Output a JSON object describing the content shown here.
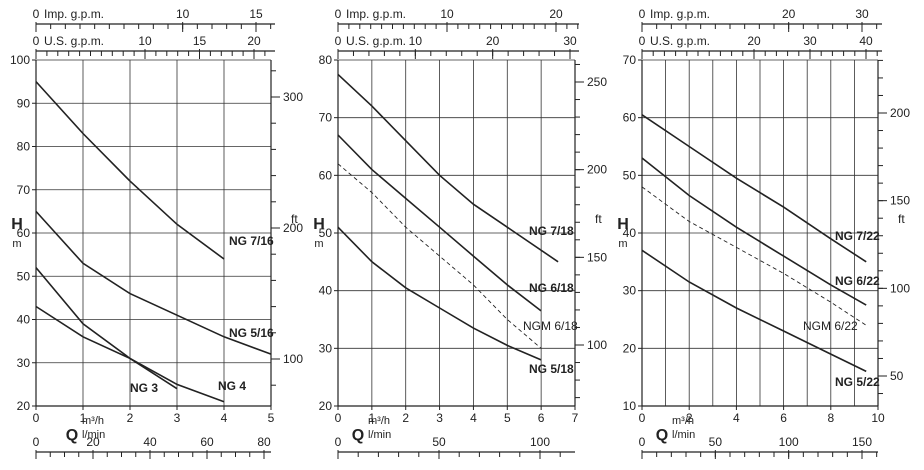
{
  "chart_data": [
    {
      "type": "line",
      "top_axes": [
        {
          "label": "Imp. g.p.m.",
          "ticks": [
            0,
            10,
            15
          ],
          "label_after": 0
        },
        {
          "label": "U.S. g.p.m.",
          "ticks": [
            0,
            10,
            15,
            20
          ],
          "label_after": 0
        }
      ],
      "ylabel": "H",
      "ylabel_unit": "m",
      "ylim": [
        20,
        100
      ],
      "y_ticks": [
        20,
        30,
        40,
        50,
        60,
        70,
        80,
        90,
        100
      ],
      "y_grid": [
        20,
        30,
        40,
        50,
        60,
        70,
        80,
        90,
        100
      ],
      "right_label": "ft",
      "right_ticks": [
        100,
        200,
        300
      ],
      "xlim": [
        0,
        5
      ],
      "x_ticks": [
        0,
        1,
        2,
        3,
        4,
        5
      ],
      "x_grid": [
        0,
        1,
        2,
        3,
        4,
        5
      ],
      "xlabel": "Q",
      "x_unit_top": "m³/h",
      "x_unit_bottom": "l/min",
      "lmin_ticks": [
        0,
        20,
        40,
        60,
        80
      ],
      "series": [
        {
          "name": "NG 7/16",
          "dashed": false,
          "bold": true,
          "x": [
            0,
            1,
            2,
            3,
            4
          ],
          "y": [
            95,
            83,
            72,
            62,
            54
          ]
        },
        {
          "name": "NG 5/16",
          "dashed": false,
          "bold": true,
          "x": [
            0,
            1,
            2,
            3,
            4,
            5
          ],
          "y": [
            65,
            53,
            46,
            41,
            36,
            32
          ]
        },
        {
          "name": "NG 4",
          "dashed": false,
          "bold": true,
          "x": [
            0,
            1,
            2,
            3,
            4
          ],
          "y": [
            52,
            39,
            31,
            25,
            21
          ]
        },
        {
          "name": "NG 3",
          "dashed": false,
          "bold": true,
          "x": [
            0,
            1,
            2,
            3
          ],
          "y": [
            43,
            36,
            31,
            24
          ]
        }
      ]
    },
    {
      "type": "line",
      "top_axes": [
        {
          "label": "Imp. g.p.m.",
          "ticks": [
            0,
            10,
            20
          ],
          "label_after": 0
        },
        {
          "label": "U.S. g.p.m.",
          "ticks": [
            0,
            10,
            20,
            30
          ],
          "label_after": 0
        }
      ],
      "ylabel": "H",
      "ylabel_unit": "m",
      "ylim": [
        20,
        80
      ],
      "y_ticks": [
        20,
        30,
        40,
        50,
        60,
        70,
        80
      ],
      "y_grid": [
        30,
        40,
        50,
        60,
        70,
        80
      ],
      "right_label": "ft",
      "right_ticks": [
        100,
        150,
        200,
        250
      ],
      "xlim": [
        0,
        7
      ],
      "x_ticks": [
        0,
        1,
        2,
        3,
        4,
        5,
        6,
        7
      ],
      "x_grid": [
        0,
        1,
        2,
        3,
        4,
        5,
        6,
        7
      ],
      "xlabel": "Q",
      "x_unit_top": "m³/h",
      "x_unit_bottom": "l/min",
      "lmin_ticks": [
        0,
        50,
        100
      ],
      "series": [
        {
          "name": "NG 7/18",
          "dashed": false,
          "bold": true,
          "x": [
            0,
            1,
            2,
            3,
            4,
            5,
            6.5
          ],
          "y": [
            77.5,
            72,
            66,
            60,
            55,
            51,
            45
          ]
        },
        {
          "name": "NG 6/18",
          "dashed": false,
          "bold": true,
          "x": [
            0,
            1,
            2,
            3,
            4,
            5,
            6
          ],
          "y": [
            67,
            61,
            56,
            51,
            46,
            41,
            36.5
          ]
        },
        {
          "name": "NGM 6/18",
          "dashed": true,
          "bold": false,
          "x": [
            0,
            1,
            2,
            3,
            4,
            5,
            6
          ],
          "y": [
            62,
            57,
            51,
            46,
            41,
            35,
            30
          ]
        },
        {
          "name": "NG 5/18",
          "dashed": false,
          "bold": true,
          "x": [
            0,
            1,
            2,
            3,
            4,
            5,
            6
          ],
          "y": [
            51,
            45,
            40.5,
            37,
            33.5,
            30.5,
            28
          ]
        }
      ]
    },
    {
      "type": "line",
      "top_axes": [
        {
          "label": "Imp. g.p.m.",
          "ticks": [
            0,
            20,
            30
          ],
          "label_after": 0
        },
        {
          "label": "U.S. g.p.m.",
          "ticks": [
            0,
            20,
            30,
            40
          ],
          "label_after": 0
        }
      ],
      "ylabel": "H",
      "ylabel_unit": "m",
      "ylim": [
        10,
        70
      ],
      "y_ticks": [
        10,
        20,
        30,
        40,
        50,
        60,
        70
      ],
      "y_grid": [
        20,
        30,
        40,
        50,
        60,
        70
      ],
      "right_label": "ft",
      "right_ticks": [
        50,
        100,
        150,
        200
      ],
      "xlim": [
        0,
        10
      ],
      "x_ticks": [
        0,
        2,
        4,
        6,
        8,
        10
      ],
      "x_grid": [
        0,
        1,
        2,
        3,
        4,
        5,
        6,
        7,
        8,
        9,
        10
      ],
      "xlabel": "Q",
      "x_unit_top": "m³/h",
      "x_unit_bottom": "l/min",
      "lmin_ticks": [
        0,
        50,
        100,
        150
      ],
      "series": [
        {
          "name": "NG 7/22",
          "dashed": false,
          "bold": true,
          "x": [
            0,
            2,
            4,
            6,
            8,
            9.5
          ],
          "y": [
            60.5,
            55,
            49.5,
            44.5,
            39,
            35
          ]
        },
        {
          "name": "NG 6/22",
          "dashed": false,
          "bold": true,
          "x": [
            0,
            2,
            4,
            6,
            8,
            9.5
          ],
          "y": [
            53,
            46.5,
            41,
            36,
            31,
            27.5
          ]
        },
        {
          "name": "NGM 6/22",
          "dashed": true,
          "bold": false,
          "x": [
            0,
            2,
            4,
            6,
            8,
            9.5
          ],
          "y": [
            48,
            42,
            37.5,
            33,
            28,
            24
          ]
        },
        {
          "name": "NG 5/22",
          "dashed": false,
          "bold": true,
          "x": [
            0,
            2,
            4,
            6,
            8,
            9.5
          ],
          "y": [
            37,
            31.5,
            27,
            23,
            19,
            16
          ]
        }
      ]
    }
  ]
}
